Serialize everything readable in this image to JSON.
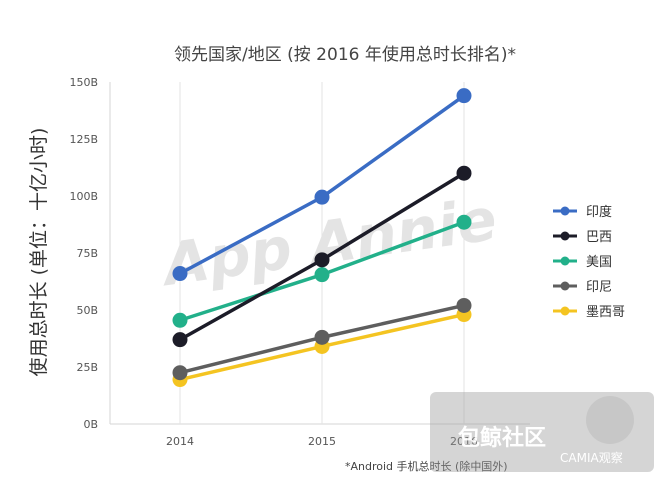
{
  "chart_data": {
    "type": "line",
    "title": "领先国家/地区 (按 2016 年使用总时长排名)*",
    "xlabel": "",
    "ylabel": "使用总时长 (单位：十亿小时)",
    "categories": [
      "2014",
      "2015",
      "2016"
    ],
    "ylim": [
      0,
      150
    ],
    "yticks": [
      "0B",
      "25B",
      "50B",
      "75B",
      "100B",
      "125B",
      "150B"
    ],
    "grid": "vertical",
    "legend": "right",
    "series": [
      {
        "name": "印度",
        "values": [
          66,
          99.5,
          144
        ],
        "color": "#3a6cc4"
      },
      {
        "name": "巴西",
        "values": [
          37,
          72,
          110
        ],
        "color": "#1c1c28"
      },
      {
        "name": "美国",
        "values": [
          45.5,
          65.5,
          88.5
        ],
        "color": "#22b08a"
      },
      {
        "name": "印尼",
        "values": [
          22.5,
          38,
          52
        ],
        "color": "#5e5e5e"
      },
      {
        "name": "墨西哥",
        "values": [
          19.5,
          34,
          48
        ],
        "color": "#f4c421"
      }
    ],
    "footnote": "*Android 手机总时长 (除中国外)",
    "watermark": "App Annie"
  },
  "overlay_watermark": {
    "main": "包鲸社区",
    "sub": "CAMIA观察"
  }
}
